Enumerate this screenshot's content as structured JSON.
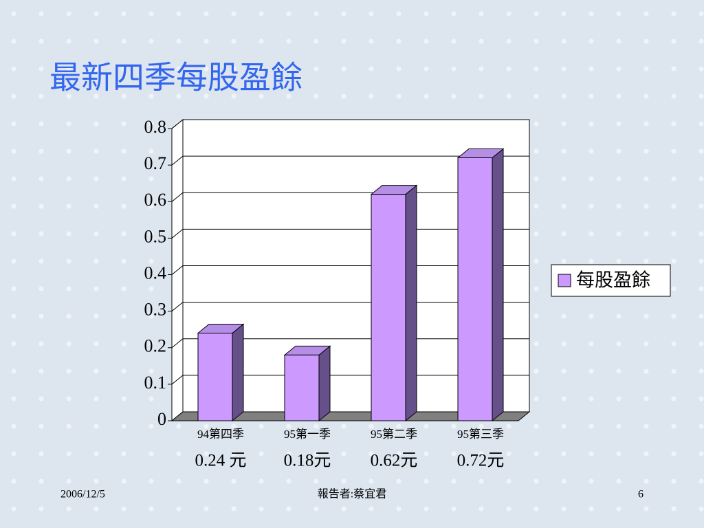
{
  "chart_data": {
    "type": "bar3d",
    "title": "最新四季每股盈餘",
    "categories": [
      "94第四季",
      "95第一季",
      "95第二季",
      "95第三季"
    ],
    "series": [
      {
        "name": "每股盈餘",
        "color": "#cc99ff",
        "values": [
          0.24,
          0.18,
          0.62,
          0.72
        ],
        "value_labels": [
          "0.24 元",
          "0.18元",
          "0.62元",
          "0.72元"
        ]
      }
    ],
    "ylim": [
      0,
      0.8
    ],
    "yticks": [
      0,
      0.1,
      0.2,
      0.3,
      0.4,
      0.5,
      0.6,
      0.7,
      0.8
    ],
    "grid": true,
    "legend": "right"
  },
  "footer": {
    "date": "2006/12/5",
    "presenter": "報告者:蔡宜君",
    "page": "6"
  }
}
